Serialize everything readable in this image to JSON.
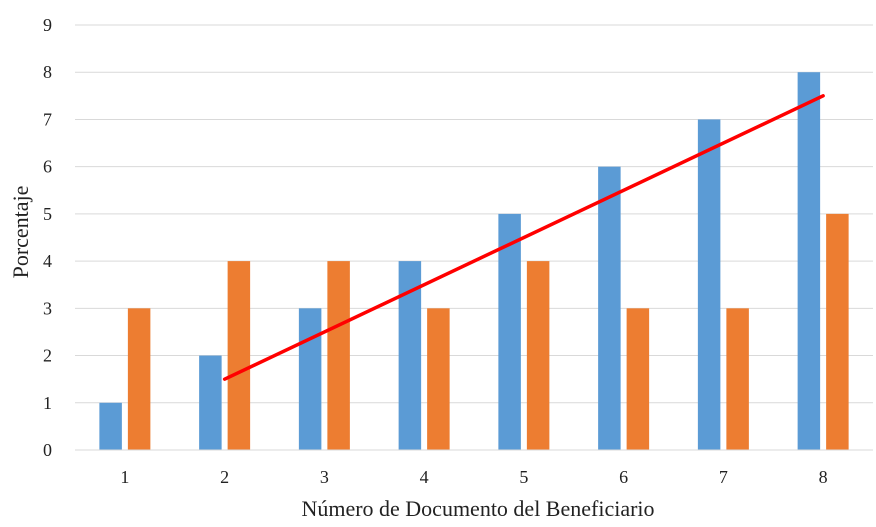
{
  "chart_data": {
    "type": "bar",
    "title": "",
    "xlabel": "Número de Documento del Beneficiario",
    "ylabel": "Porcentaje",
    "categories": [
      "1",
      "2",
      "3",
      "4",
      "5",
      "6",
      "7",
      "8"
    ],
    "series": [
      {
        "values": [
          1,
          2,
          3,
          4,
          5,
          6,
          7,
          8
        ],
        "color": "#5B9BD5"
      },
      {
        "values": [
          3,
          4,
          4,
          3,
          4,
          3,
          3,
          5
        ],
        "color": "#ED7D31"
      }
    ],
    "trendline": {
      "x_start": 2,
      "x_end": 8,
      "y_start": 1.5,
      "y_end": 7.5,
      "color": "#FF0000"
    },
    "ylim": [
      0,
      9
    ],
    "yticks": [
      "0",
      "1",
      "2",
      "3",
      "4",
      "5",
      "6",
      "7",
      "8",
      "9"
    ],
    "grid": true,
    "legend": "none"
  }
}
